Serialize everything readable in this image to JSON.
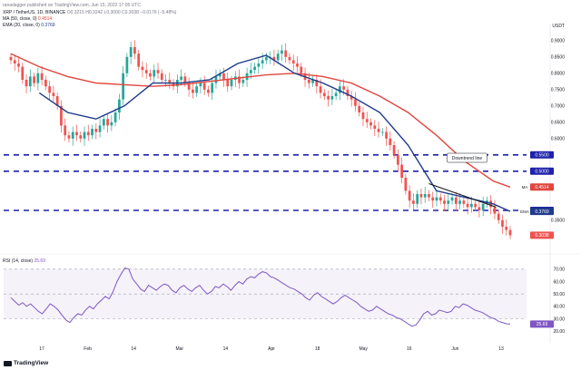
{
  "header": {
    "published_by": "ranadagger published on TradingView.com, Jun 15, 2022 17:05 UTC",
    "symbol_line": "XRP / TetherUS, 1D, BINANCE",
    "ohlc": "O0.3215 H0.3242 L0.3000 C0.3038 −0.0176 (−5.48%)",
    "ma_label": "MA (50, close, 0)",
    "ma_value": "0.4514",
    "ema_label": "EMA (20, close, 0)",
    "ema_value": "0.3769",
    "rsi_label": "RSI (14, close)",
    "rsi_value": "25.69"
  },
  "branding": {
    "logo_text": "TradingView"
  },
  "colors": {
    "up": "#26a69a",
    "down": "#ef5350",
    "ma": "#e0463e",
    "ema": "#1e3a8a",
    "rsi": "#7e57c2",
    "level": "#1e22aa"
  },
  "chart_data": [
    {
      "type": "candlestick",
      "title": "XRP / TetherUS, 1D, BINANCE",
      "currency": "USDT",
      "y_axis_ticks": [
        "0.9000",
        "0.8500",
        "0.8000",
        "0.7500",
        "0.7000",
        "0.6500",
        "0.6000",
        "0.3500"
      ],
      "x_axis_ticks": [
        "17",
        "Feb",
        "14",
        "Mar",
        "14",
        "Apr",
        "18",
        "May",
        "16",
        "Jun",
        "13"
      ],
      "ylim": [
        0.28,
        0.93
      ],
      "horizontal_levels": [
        {
          "value": 0.55,
          "label": "0.5500"
        },
        {
          "value": 0.5,
          "label": "0.5000"
        },
        {
          "value": 0.38,
          "label": "0.3800"
        }
      ],
      "value_tags": [
        {
          "label": "MA",
          "value": "0.4514"
        },
        {
          "label": "EMA",
          "value": "0.3769"
        },
        {
          "label": "XRPUSDT",
          "value": "0.3038"
        }
      ],
      "annotation": "Downtrend line",
      "downtrend_line": [
        [
          "2022-05-12",
          0.465
        ],
        [
          "2022-06-09",
          0.39
        ]
      ],
      "series": [
        {
          "name": "MA (50, close, 0)",
          "values": [
            [
              0,
              0.86
            ],
            [
              10,
              0.82
            ],
            [
              20,
              0.79
            ],
            [
              30,
              0.77
            ],
            [
              40,
              0.765
            ],
            [
              50,
              0.76
            ],
            [
              60,
              0.765
            ],
            [
              70,
              0.775
            ],
            [
              80,
              0.785
            ],
            [
              90,
              0.795
            ],
            [
              100,
              0.8
            ],
            [
              110,
              0.79
            ],
            [
              120,
              0.77
            ],
            [
              130,
              0.73
            ],
            [
              140,
              0.68
            ],
            [
              150,
              0.61
            ],
            [
              160,
              0.53
            ],
            [
              170,
              0.47
            ],
            [
              176,
              0.4514
            ]
          ]
        },
        {
          "name": "EMA (20, close, 0)",
          "values": [
            [
              10,
              0.74
            ],
            [
              20,
              0.68
            ],
            [
              30,
              0.66
            ],
            [
              40,
              0.7
            ],
            [
              50,
              0.77
            ],
            [
              60,
              0.77
            ],
            [
              70,
              0.78
            ],
            [
              80,
              0.83
            ],
            [
              90,
              0.855
            ],
            [
              100,
              0.8
            ],
            [
              110,
              0.77
            ],
            [
              120,
              0.73
            ],
            [
              130,
              0.68
            ],
            [
              140,
              0.58
            ],
            [
              150,
              0.44
            ],
            [
              160,
              0.42
            ],
            [
              170,
              0.4
            ],
            [
              176,
              0.3769
            ]
          ]
        }
      ],
      "approx_daily_closes": [
        0.84,
        0.83,
        0.82,
        0.78,
        0.76,
        0.79,
        0.77,
        0.8,
        0.78,
        0.76,
        0.74,
        0.73,
        0.7,
        0.64,
        0.61,
        0.6,
        0.62,
        0.61,
        0.6,
        0.62,
        0.61,
        0.63,
        0.62,
        0.64,
        0.66,
        0.64,
        0.65,
        0.68,
        0.72,
        0.8,
        0.85,
        0.88,
        0.86,
        0.82,
        0.81,
        0.8,
        0.79,
        0.81,
        0.8,
        0.78,
        0.78,
        0.77,
        0.76,
        0.78,
        0.79,
        0.77,
        0.75,
        0.74,
        0.76,
        0.77,
        0.75,
        0.74,
        0.77,
        0.79,
        0.8,
        0.78,
        0.76,
        0.78,
        0.79,
        0.77,
        0.78,
        0.8,
        0.81,
        0.82,
        0.83,
        0.84,
        0.85,
        0.85,
        0.84,
        0.86,
        0.87,
        0.85,
        0.84,
        0.83,
        0.82,
        0.8,
        0.78,
        0.77,
        0.78,
        0.76,
        0.74,
        0.73,
        0.72,
        0.73,
        0.74,
        0.76,
        0.75,
        0.73,
        0.72,
        0.7,
        0.68,
        0.66,
        0.65,
        0.64,
        0.63,
        0.62,
        0.62,
        0.6,
        0.58,
        0.55,
        0.52,
        0.48,
        0.44,
        0.41,
        0.4,
        0.43,
        0.42,
        0.43,
        0.42,
        0.41,
        0.42,
        0.41,
        0.4,
        0.41,
        0.42,
        0.4,
        0.41,
        0.4,
        0.39,
        0.4,
        0.39,
        0.38,
        0.4,
        0.41,
        0.39,
        0.37,
        0.35,
        0.33,
        0.32,
        0.3038
      ]
    },
    {
      "type": "line",
      "title": "RSI (14, close)",
      "y_axis_ticks": [
        "70.00",
        "60.00",
        "50.00",
        "40.00",
        "30.00",
        "20.00"
      ],
      "x_axis_ticks": [
        "17",
        "Feb",
        "14",
        "Mar",
        "14",
        "Apr",
        "18",
        "May",
        "16",
        "Jun",
        "13"
      ],
      "ylim": [
        15,
        75
      ],
      "band": [
        30,
        70
      ],
      "series": [
        {
          "name": "RSI (14, close)",
          "values": [
            47,
            44,
            41,
            43,
            40,
            42,
            39,
            36,
            34,
            38,
            42,
            40,
            37,
            33,
            29,
            27,
            31,
            34,
            33,
            37,
            40,
            38,
            42,
            45,
            48,
            46,
            52,
            60,
            66,
            71,
            70,
            62,
            58,
            54,
            52,
            57,
            55,
            53,
            56,
            58,
            57,
            53,
            51,
            55,
            57,
            54,
            52,
            55,
            57,
            53,
            50,
            52,
            56,
            55,
            58,
            56,
            53,
            57,
            60,
            58,
            62,
            64,
            63,
            66,
            68,
            67,
            64,
            63,
            61,
            59,
            57,
            55,
            54,
            52,
            50,
            47,
            45,
            49,
            51,
            48,
            46,
            44,
            42,
            44,
            47,
            49,
            47,
            45,
            43,
            40,
            38,
            36,
            37,
            40,
            38,
            36,
            34,
            33,
            31,
            30,
            28,
            26,
            24,
            25,
            29,
            34,
            36,
            33,
            34,
            37,
            36,
            35,
            36,
            40,
            39,
            42,
            41,
            39,
            37,
            36,
            35,
            33,
            31,
            30,
            28,
            27,
            26,
            25.69
          ]
        }
      ],
      "last_value": "25.69"
    }
  ]
}
